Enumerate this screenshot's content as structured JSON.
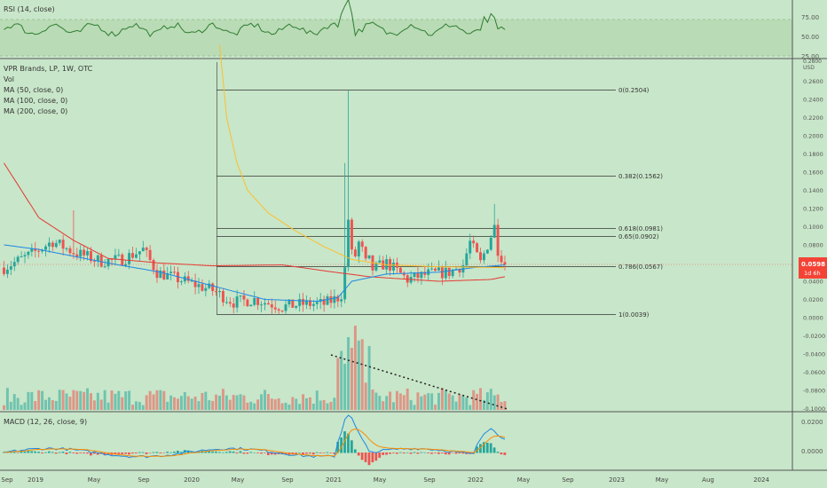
{
  "colors": {
    "background": "#c8e6c9",
    "up_candle": "#26a69a",
    "down_candle": "#ef5350",
    "ma50": "#e53935",
    "ma100": "#1e88e5",
    "ma200": "#fbc02d",
    "rsi_line": "#2e7d32",
    "rsi_band": "#b8dcb4",
    "macd_line": "#1e88e5",
    "signal_line": "#fb8c00",
    "price_label_bg": "#f44336",
    "text": "#333333"
  },
  "rsi_panel": {
    "title": "RSI (14, close)",
    "ticks": [
      "75.00",
      "50.00",
      "25.00"
    ]
  },
  "price_panel": {
    "legend": {
      "symbol": "VPR Brands, LP, 1W, OTC",
      "vol": "Vol",
      "ma50": "MA (50, close, 0)",
      "ma100": "MA (100, close, 0)",
      "ma200": "MA (200, close, 0)"
    },
    "currency": "USD",
    "last_price_label": "0.0598",
    "countdown_label": "1d 6h"
  },
  "macd_panel": {
    "title": "MACD (12, 26, close, 9)",
    "ticks": [
      "0.0200",
      "0.0000"
    ]
  },
  "chart_data": {
    "type": "candlestick",
    "symbol": "VPR Brands, LP",
    "interval": "1W",
    "exchange": "OTC",
    "price_axis": {
      "ticks": [
        0.26,
        0.24,
        0.22,
        0.2,
        0.18,
        0.16,
        0.14,
        0.12,
        0.1,
        0.08,
        0.06,
        0.04,
        0.02,
        0.0,
        -0.02,
        -0.04,
        -0.06,
        -0.08,
        -0.1
      ],
      "tick_labels": [
        "0.2600",
        "0.2400",
        "0.2200",
        "0.2000",
        "0.1800",
        "0.1600",
        "0.1400",
        "0.1200",
        "0.1000",
        "0.0800",
        "0.0600",
        "0.0400",
        "0.0200",
        "0.0000",
        "-0.0200",
        "-0.0400",
        "-0.0600",
        "-0.0800",
        "-0.1000"
      ],
      "range": [
        -0.104,
        0.272
      ],
      "top_tick_partial": "0.2800"
    },
    "time_axis": {
      "labels": [
        "Sep",
        "2019",
        "May",
        "Sep",
        "2020",
        "May",
        "Sep",
        "2021",
        "May",
        "Sep",
        "2022",
        "May",
        "Sep",
        "2023",
        "May",
        "Aug",
        "2024"
      ]
    },
    "last_price": 0.0598,
    "fibonacci": [
      {
        "level": "0",
        "value": 0.2504,
        "label": "0(0.2504)"
      },
      {
        "level": "0.382",
        "value": 0.1562,
        "label": "0.382(0.1562)"
      },
      {
        "level": "0.618",
        "value": 0.0981,
        "label": "0.618(0.0981)"
      },
      {
        "level": "0.65",
        "value": 0.0902,
        "label": "0.65(0.0902)"
      },
      {
        "level": "0.786",
        "value": 0.0567,
        "label": "0.786(0.0567)"
      },
      {
        "level": "1",
        "value": 0.0039,
        "label": "1(0.0039)"
      }
    ],
    "key_points": [
      {
        "when": "2021-02",
        "high": 0.25,
        "note": "spike high"
      },
      {
        "when": "2020-04",
        "low": 0.008
      },
      {
        "when": "2022-02",
        "high": 0.125
      }
    ],
    "rsi": {
      "ticks": [
        75,
        50,
        25
      ],
      "peak": 88
    },
    "macd": {
      "ticks": [
        0.02,
        0.0
      ]
    }
  }
}
